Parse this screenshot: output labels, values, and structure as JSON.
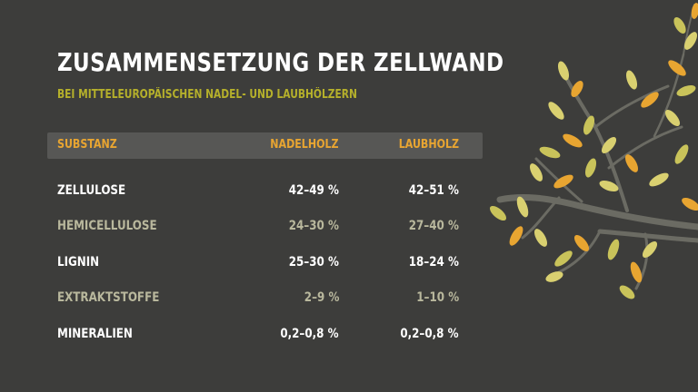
{
  "title": "ZUSAMMENSETZUNG DER ZELLWAND",
  "subtitle": "BEI MITTELEUROPÄISCHEN NADEL- UND LAUBHÖLZERN",
  "table": {
    "headers": [
      "SUBSTANZ",
      "NADELHOLZ",
      "LAUBHOLZ"
    ],
    "rows": [
      {
        "substance": "ZELLULOSE",
        "nadelholz": "42–49 %",
        "laubholz": "42–51 %"
      },
      {
        "substance": "HEMICELLULOSE",
        "nadelholz": "24–30 %",
        "laubholz": "27–40 %"
      },
      {
        "substance": "LIGNIN",
        "nadelholz": "25–30 %",
        "laubholz": "18–24 %"
      },
      {
        "substance": "EXTRAKTSTOFFE",
        "nadelholz": "2–9 %",
        "laubholz": "1–10 %"
      },
      {
        "substance": "MINERALIEN",
        "nadelholz": "0,2–0,8 %",
        "laubholz": "0,2–0,8 %"
      }
    ]
  },
  "colors": {
    "background": "#3d3d3b",
    "accent_orange": "#e8a531",
    "accent_olive": "#b5b02b",
    "dim_row": "#b9b89d",
    "branch": "#6b6b63"
  }
}
